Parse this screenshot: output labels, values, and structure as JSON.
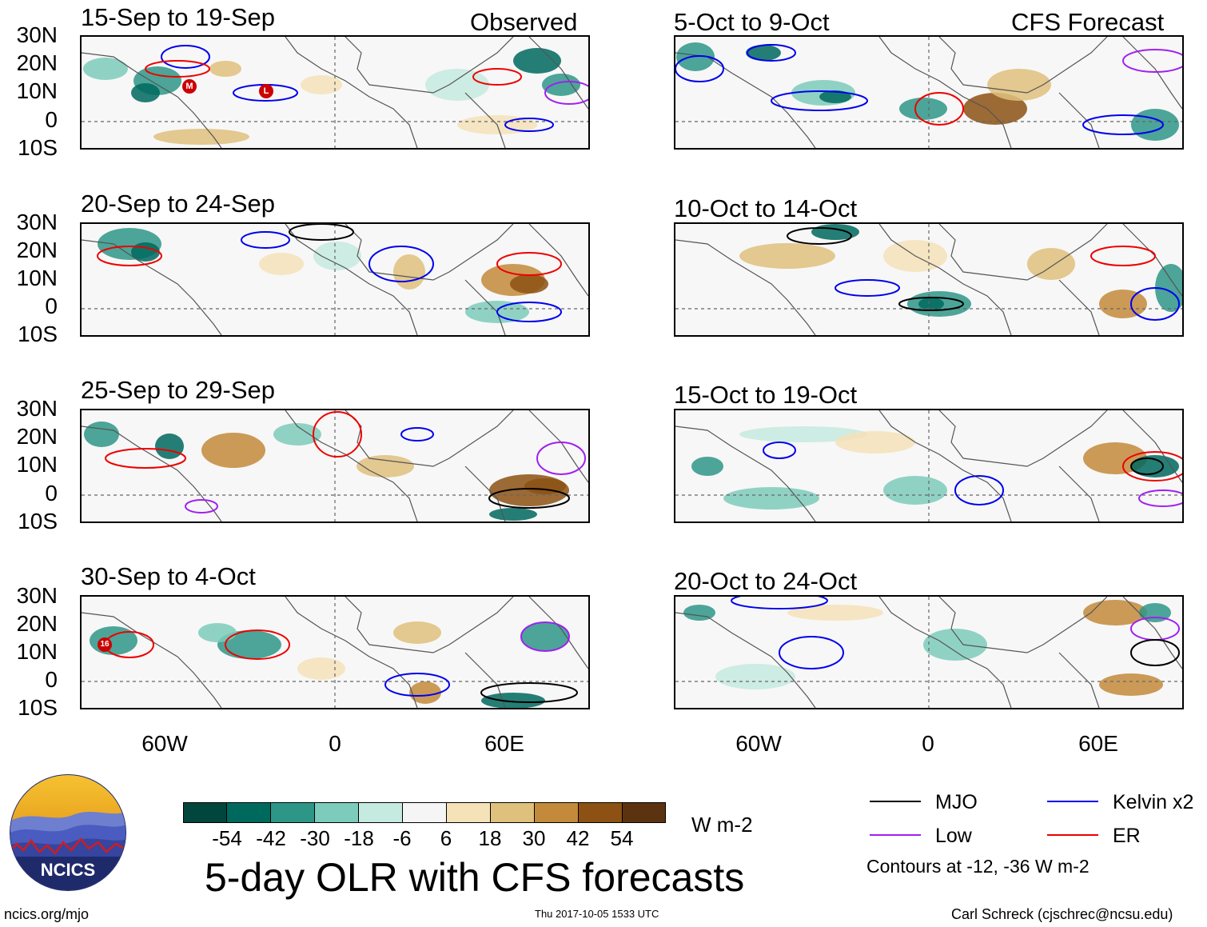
{
  "left_column": {
    "corner_label": "Observed"
  },
  "right_column": {
    "corner_label": "CFS Forecast"
  },
  "panels_left": [
    {
      "title": "15-Sep to 19-Sep"
    },
    {
      "title": "20-Sep to 24-Sep"
    },
    {
      "title": "25-Sep to 29-Sep"
    },
    {
      "title": "30-Sep to 4-Oct"
    }
  ],
  "panels_right": [
    {
      "title": "5-Oct to 9-Oct"
    },
    {
      "title": "10-Oct to 14-Oct"
    },
    {
      "title": "15-Oct to 19-Oct"
    },
    {
      "title": "20-Oct to 24-Oct"
    }
  ],
  "lat_labels": [
    "30N",
    "20N",
    "10N",
    "0",
    "10S"
  ],
  "lon_labels": [
    "60W",
    "0",
    "60E"
  ],
  "storm_markers": [
    "M",
    "L",
    "16"
  ],
  "colorbar": {
    "levels": [
      "-54",
      "-42",
      "-30",
      "-18",
      "-6",
      "6",
      "18",
      "30",
      "42",
      "54"
    ],
    "colors": [
      "#00463c",
      "#00695e",
      "#2e9687",
      "#7ccbbb",
      "#c5eadf",
      "#f5f5f5",
      "#f5e2b8",
      "#dfc07c",
      "#c38a3b",
      "#8c5113",
      "#5c3310"
    ],
    "units": "W m-2"
  },
  "main_title": "5-day OLR with CFS forecasts",
  "legend": {
    "items": [
      {
        "label": "MJO",
        "color": "#000000"
      },
      {
        "label": "Kelvin x2",
        "color": "#0000ee"
      },
      {
        "label": "Low",
        "color": "#a020f0"
      },
      {
        "label": "ER",
        "color": "#ee0000"
      }
    ],
    "note": "Contours at -12, -36 W m-2"
  },
  "logo_text": "NCICS",
  "footer": {
    "left": "ncics.org/mjo",
    "center": "Thu 2017-10-05 1533 UTC",
    "right": "Carl Schreck (cjschrec@ncsu.edu)"
  }
}
